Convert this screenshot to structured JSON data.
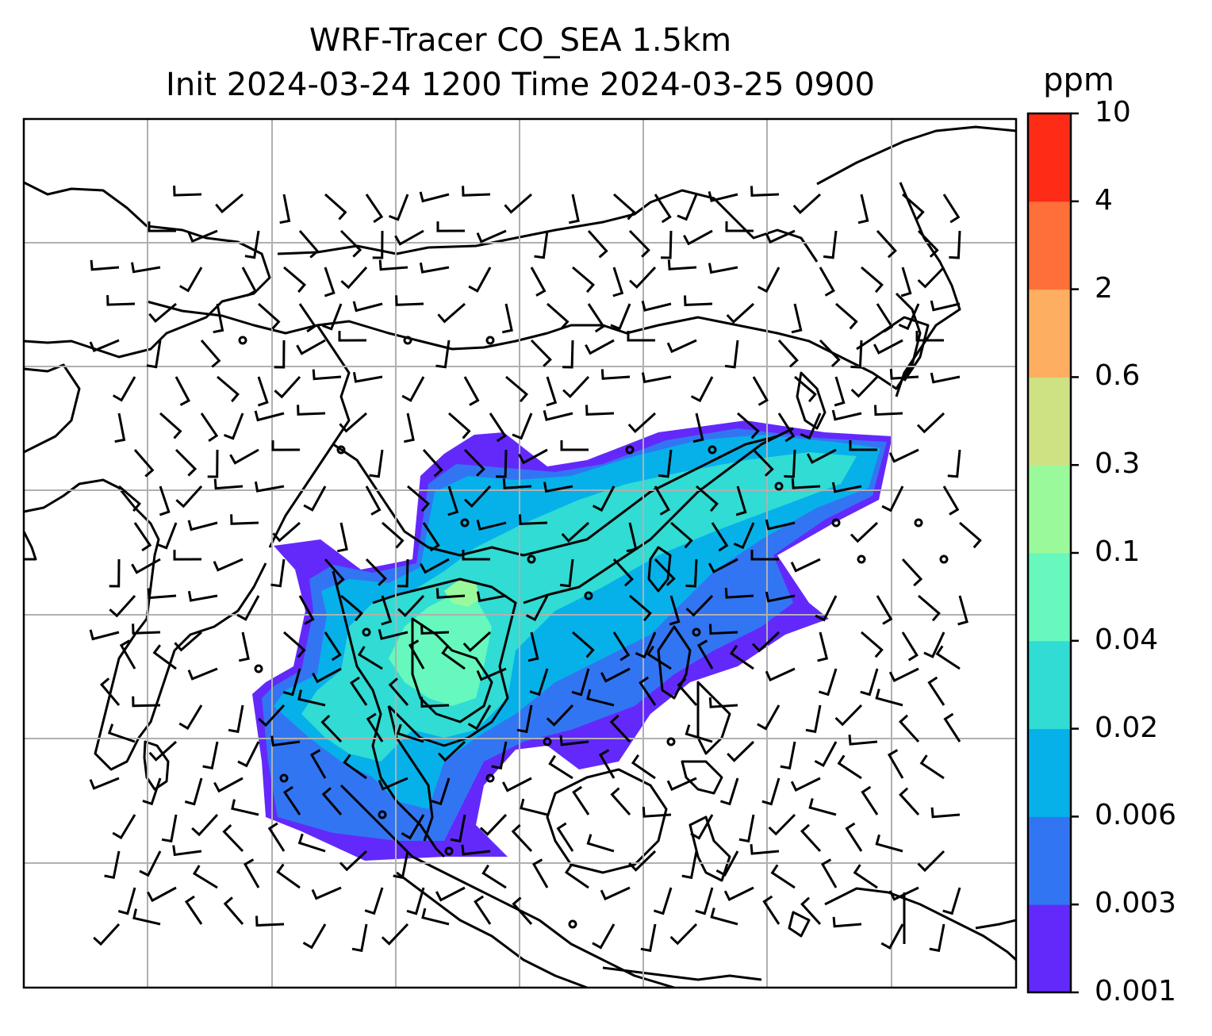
{
  "title_line1": "WRF-Tracer CO_SEA 1.5km",
  "title_line2": "Init 2024-03-24 1200 Time 2024-03-25 0900",
  "colorbar": {
    "unit": "ppm",
    "levels": [
      "0.001",
      "0.003",
      "0.006",
      "0.02",
      "0.04",
      "0.1",
      "0.3",
      "0.6",
      "2",
      "4",
      "10"
    ],
    "colors": [
      "#6329fb",
      "#3275f2",
      "#06b1ea",
      "#30dcd4",
      "#66f8bd",
      "#9af99a",
      "#cee283",
      "#fdae61",
      "#fe6f3a",
      "#fe2b17"
    ]
  },
  "chart_data": {
    "type": "map",
    "variable": "CO tracer concentration",
    "unit": "ppm",
    "overlays": [
      "coastlines",
      "country borders",
      "wind barbs",
      "gridlines"
    ],
    "grid": true
  }
}
